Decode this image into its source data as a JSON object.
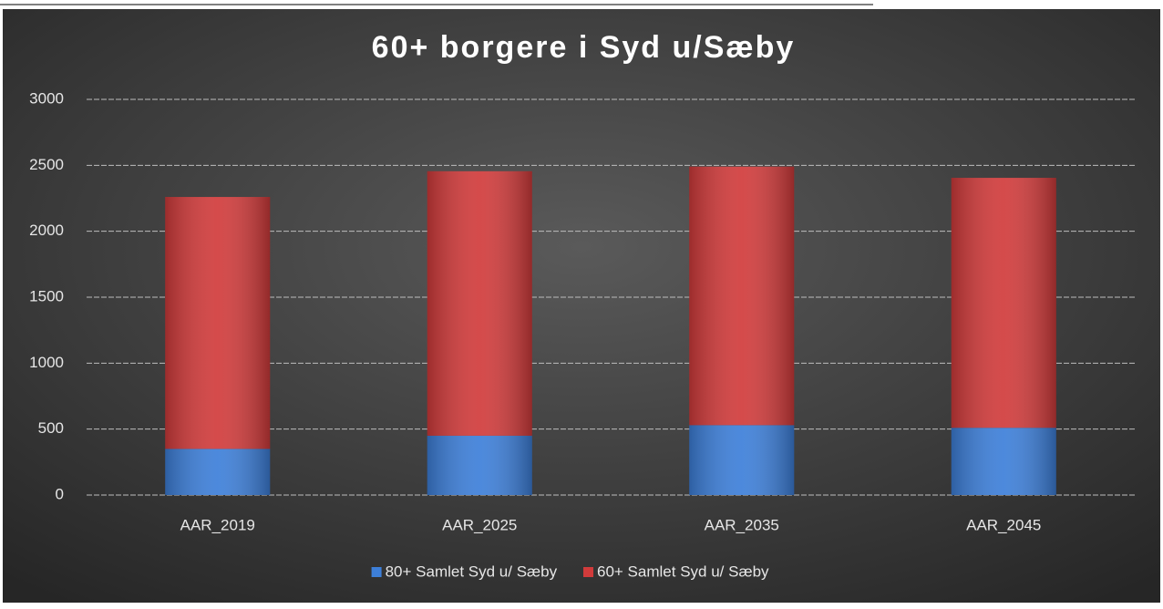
{
  "chart_data": {
    "type": "stacked_bar",
    "title": "60+ borgere i Syd u/Sæby",
    "categories": [
      "AAR_2019",
      "AAR_2025",
      "AAR_2035",
      "AAR_2045"
    ],
    "series": [
      {
        "name": "80+ Samlet Syd u/ Sæby",
        "color": "#3d7fd9",
        "values": [
          350,
          450,
          530,
          510
        ]
      },
      {
        "name": "60+ Samlet Syd u/ Sæby",
        "color": "#d13b3b",
        "values": [
          1910,
          2005,
          1960,
          1895
        ]
      }
    ],
    "ylim": [
      0,
      3000
    ],
    "yticks": [
      0,
      500,
      1000,
      1500,
      2000,
      2500,
      3000
    ],
    "grid": true,
    "legend": "bottom"
  }
}
